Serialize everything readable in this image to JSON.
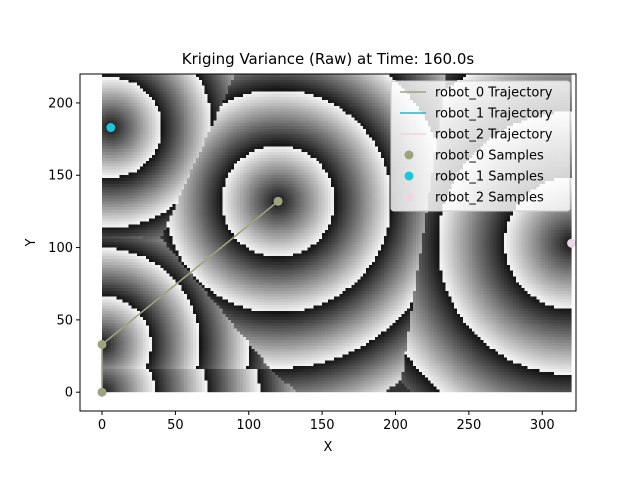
{
  "chart_data": {
    "type": "heatmap",
    "title": "Kriging Variance (Raw) at Time: 160.0s",
    "xlabel": "X",
    "ylabel": "Y",
    "xlim": [
      -15,
      323
    ],
    "ylim": [
      -13,
      220
    ],
    "xticks": [
      0,
      50,
      100,
      150,
      200,
      250,
      300
    ],
    "yticks": [
      0,
      50,
      100,
      150,
      200
    ],
    "grid": false,
    "legend_position": "top-right",
    "colormap": "gray-cyclic",
    "heatmap_extent": {
      "x": [
        0,
        320
      ],
      "y": [
        0,
        220
      ]
    },
    "series": [
      {
        "name": "robot_0 Trajectory",
        "kind": "line",
        "color": "#9ea37f",
        "x": [
          0,
          0,
          120
        ],
        "y": [
          0,
          33,
          132
        ]
      },
      {
        "name": "robot_1 Trajectory",
        "kind": "line",
        "color": "#1cb9cf",
        "x": [
          6
        ],
        "y": [
          183
        ]
      },
      {
        "name": "robot_2 Trajectory",
        "kind": "line",
        "color": "#ecd6e6",
        "x": [
          320
        ],
        "y": [
          103
        ]
      },
      {
        "name": "robot_0 Samples",
        "kind": "scatter",
        "color": "#9ea37f",
        "x": [
          0,
          0,
          120
        ],
        "y": [
          0,
          33,
          132
        ]
      },
      {
        "name": "robot_1 Samples",
        "kind": "scatter",
        "color": "#1cc6da",
        "x": [
          6
        ],
        "y": [
          183
        ]
      },
      {
        "name": "robot_2 Samples",
        "kind": "scatter",
        "color": "#ecd6e6",
        "x": [
          320
        ],
        "y": [
          103
        ]
      }
    ]
  }
}
